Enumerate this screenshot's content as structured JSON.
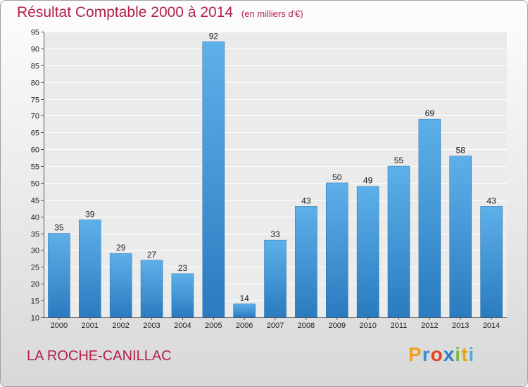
{
  "header": {
    "title": "Résultat Comptable 2000 à 2014",
    "subtitle": "(en milliers d'€)"
  },
  "footer": {
    "place": "LA ROCHE-CANILLAC",
    "logo_letters": [
      "P",
      "r",
      "o",
      "x",
      "i",
      "t",
      "i"
    ]
  },
  "colors": {
    "title": "#b3204a",
    "bar_top": "#5eb0ea",
    "bar_bottom": "#2a7bbf"
  },
  "chart_data": {
    "type": "bar",
    "title": "Résultat Comptable 2000 à 2014",
    "subtitle": "(en milliers d'€)",
    "xlabel": "",
    "ylabel": "",
    "categories": [
      "2000",
      "2001",
      "2002",
      "2003",
      "2004",
      "2005",
      "2006",
      "2007",
      "2008",
      "2009",
      "2010",
      "2011",
      "2012",
      "2013",
      "2014"
    ],
    "values": [
      35,
      39,
      29,
      27,
      23,
      92,
      14,
      33,
      43,
      50,
      49,
      55,
      69,
      58,
      43
    ],
    "ylim": [
      10,
      95
    ],
    "yticks": [
      10,
      15,
      20,
      25,
      30,
      35,
      40,
      45,
      50,
      55,
      60,
      65,
      70,
      75,
      80,
      85,
      90,
      95
    ],
    "grid": true
  }
}
